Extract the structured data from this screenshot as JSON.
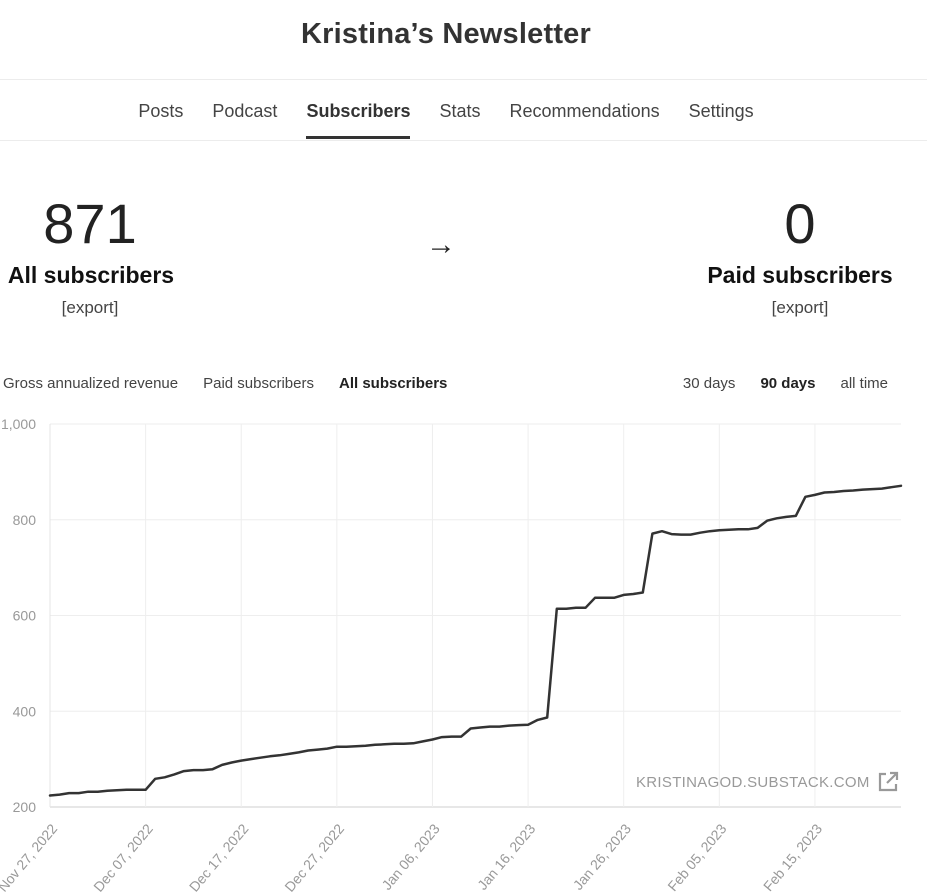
{
  "header": {
    "title": "Kristina’s Newsletter"
  },
  "nav": {
    "tabs": [
      "Posts",
      "Podcast",
      "Subscribers",
      "Stats",
      "Recommendations",
      "Settings"
    ],
    "active": "Subscribers"
  },
  "summary": {
    "all": {
      "count": "871",
      "label": "All subscribers",
      "export": "[export]"
    },
    "arrow": "→",
    "paid": {
      "count": "0",
      "label": "Paid subscribers",
      "export": "[export]"
    }
  },
  "chart_controls": {
    "metrics": [
      "Gross annualized revenue",
      "Paid subscribers",
      "All subscribers"
    ],
    "metric_active": "All subscribers",
    "ranges": [
      "30 days",
      "90 days",
      "all time"
    ],
    "range_active": "90 days"
  },
  "watermark": {
    "text": "KRISTINAGOD.SUBSTACK.COM",
    "icon": "external-link-icon"
  },
  "chart_data": {
    "type": "line",
    "title": "",
    "xlabel": "",
    "ylabel": "",
    "ylim": [
      200,
      1000
    ],
    "yticks": [
      200,
      400,
      600,
      800,
      1000
    ],
    "ytick_labels": [
      "200",
      "400",
      "600",
      "800",
      "1,000"
    ],
    "xlim": [
      "2022-11-27",
      "2023-02-24"
    ],
    "xticks": [
      "2022-11-27",
      "2022-12-07",
      "2022-12-17",
      "2022-12-27",
      "2023-01-06",
      "2023-01-16",
      "2023-01-26",
      "2023-02-05",
      "2023-02-15"
    ],
    "xtick_labels": [
      "Nov 27, 2022",
      "Dec 07, 2022",
      "Dec 17, 2022",
      "Dec 27, 2022",
      "Jan 06, 2023",
      "Jan 16, 2023",
      "Jan 26, 2023",
      "Feb 05, 2023",
      "Feb 15, 2023"
    ],
    "grid": true,
    "line_color": "#333333",
    "series": [
      {
        "x": [
          "2022-11-27",
          "2022-11-28",
          "2022-11-29",
          "2022-11-30",
          "2022-12-01",
          "2022-12-02",
          "2022-12-03",
          "2022-12-04",
          "2022-12-05",
          "2022-12-06",
          "2022-12-07",
          "2022-12-08",
          "2022-12-09",
          "2022-12-10",
          "2022-12-11",
          "2022-12-12",
          "2022-12-13",
          "2022-12-14",
          "2022-12-15",
          "2022-12-16",
          "2022-12-17",
          "2022-12-18",
          "2022-12-19",
          "2022-12-20",
          "2022-12-21",
          "2022-12-22",
          "2022-12-23",
          "2022-12-24",
          "2022-12-25",
          "2022-12-26",
          "2022-12-27",
          "2022-12-28",
          "2022-12-29",
          "2022-12-30",
          "2022-12-31",
          "2023-01-01",
          "2023-01-02",
          "2023-01-03",
          "2023-01-04",
          "2023-01-05",
          "2023-01-06",
          "2023-01-07",
          "2023-01-08",
          "2023-01-09",
          "2023-01-10",
          "2023-01-11",
          "2023-01-12",
          "2023-01-13",
          "2023-01-14",
          "2023-01-15",
          "2023-01-16",
          "2023-01-17",
          "2023-01-18",
          "2023-01-19",
          "2023-01-20",
          "2023-01-21",
          "2023-01-22",
          "2023-01-23",
          "2023-01-24",
          "2023-01-25",
          "2023-01-26",
          "2023-01-27",
          "2023-01-28",
          "2023-01-29",
          "2023-01-30",
          "2023-01-31",
          "2023-02-01",
          "2023-02-02",
          "2023-02-03",
          "2023-02-04",
          "2023-02-05",
          "2023-02-06",
          "2023-02-07",
          "2023-02-08",
          "2023-02-09",
          "2023-02-10",
          "2023-02-11",
          "2023-02-12",
          "2023-02-13",
          "2023-02-14",
          "2023-02-15",
          "2023-02-16",
          "2023-02-17",
          "2023-02-18",
          "2023-02-19",
          "2023-02-20",
          "2023-02-21",
          "2023-02-22",
          "2023-02-23",
          "2023-02-24"
        ],
        "values": [
          224,
          226,
          229,
          229,
          232,
          232,
          234,
          235,
          236,
          236,
          236,
          259,
          262,
          268,
          275,
          277,
          277,
          279,
          288,
          293,
          297,
          300,
          303,
          306,
          308,
          311,
          314,
          318,
          320,
          322,
          326,
          326,
          327,
          328,
          330,
          331,
          332,
          332,
          333,
          337,
          341,
          346,
          347,
          347,
          364,
          366,
          368,
          368,
          370,
          371,
          372,
          382,
          387,
          614,
          614,
          616,
          616,
          637,
          637,
          637,
          643,
          645,
          648,
          771,
          776,
          770,
          769,
          769,
          773,
          776,
          778,
          779,
          780,
          780,
          783,
          798,
          803,
          806,
          808,
          848,
          852,
          857,
          858,
          860,
          861,
          863,
          864,
          865,
          868,
          871
        ]
      }
    ]
  }
}
